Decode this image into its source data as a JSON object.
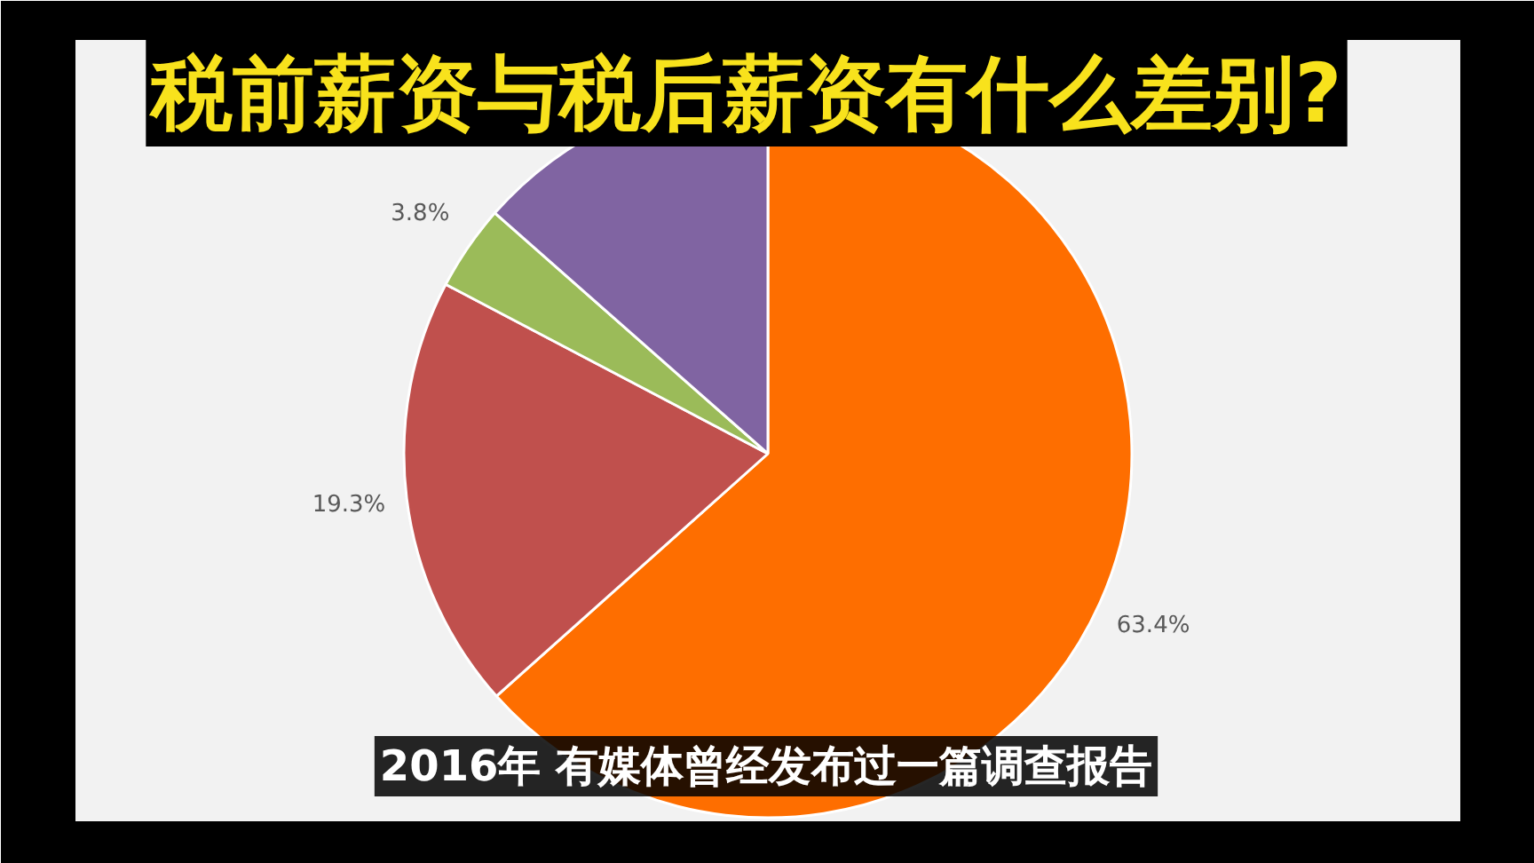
{
  "chart_data": {
    "type": "pie",
    "title": "税前薪资与税后薪资有什么差别?",
    "categories": [
      null,
      null,
      null,
      null
    ],
    "values": [
      63.4,
      19.3,
      3.8,
      13.5
    ],
    "colors": [
      "#fe6e00",
      "#c0504d",
      "#9bbb59",
      "#8064a2"
    ],
    "value_labels": [
      "63.4%",
      "19.3%",
      "3.8%",
      null
    ],
    "annotations": [
      "2016年 有媒体曾经发布过一篇调查报告"
    ]
  }
}
